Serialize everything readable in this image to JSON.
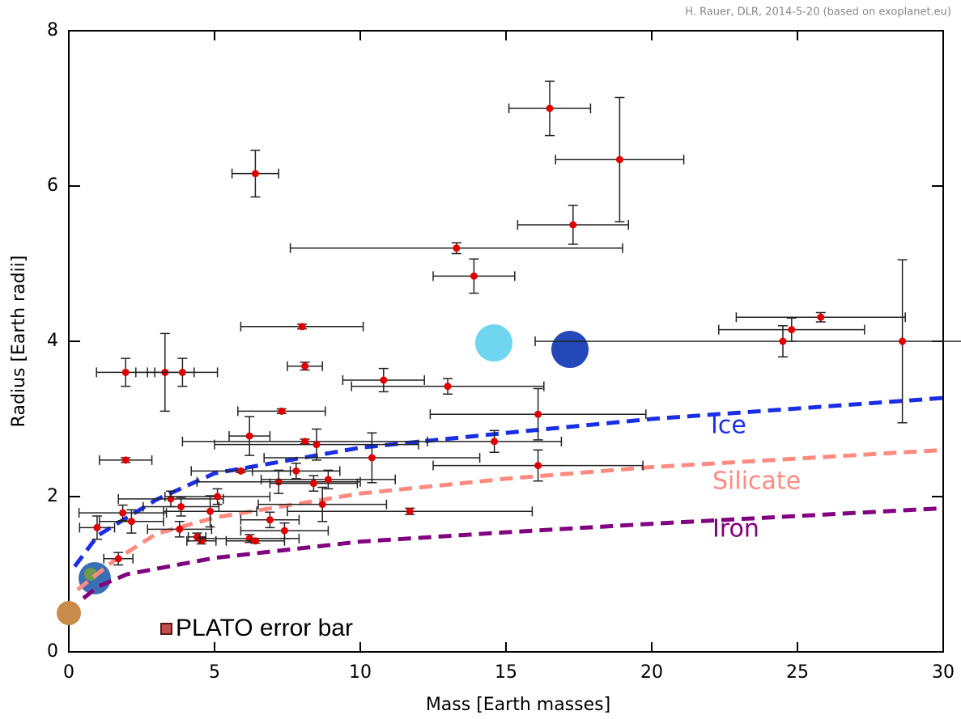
{
  "chart_data": {
    "type": "scatter",
    "credit": "H. Rauer, DLR, 2014-5-20 (based on exoplanet.eu)",
    "x_label": "Mass [Earth masses]",
    "y_label": "Radius [Earth radii]",
    "annotation": "PLATO error bar",
    "xlim": [
      0,
      30
    ],
    "xticks": [
      0,
      5,
      10,
      15,
      20,
      25,
      30
    ],
    "ylim": [
      0,
      8
    ],
    "yticks": [
      0,
      2,
      4,
      6,
      8
    ],
    "series": [
      {
        "color": "#e00000",
        "x": [
          16.5,
          18.9,
          6.4,
          17.3,
          13.3,
          13.9,
          8.0,
          25.8,
          24.8,
          24.5,
          28.6,
          1.95,
          3.3,
          3.9,
          8.1,
          10.8,
          13.0,
          7.3,
          16.1,
          6.2,
          8.1,
          8.5,
          14.6,
          1.95,
          10.4,
          16.1,
          5.9,
          7.8,
          7.2,
          8.4,
          8.9,
          3.5,
          5.1,
          3.85,
          1.85,
          4.85,
          8.7,
          11.7,
          0.97,
          2.15,
          3.8,
          6.9,
          4.4,
          4.55,
          6.2,
          6.4,
          7.4,
          1.7
        ],
        "values": [
          7.0,
          6.34,
          6.16,
          5.5,
          5.2,
          4.84,
          4.19,
          4.31,
          4.15,
          4.0,
          4.0,
          3.6,
          3.6,
          3.6,
          3.68,
          3.5,
          3.42,
          3.1,
          3.06,
          2.78,
          2.71,
          2.67,
          2.71,
          2.47,
          2.5,
          2.4,
          2.33,
          2.33,
          2.19,
          2.17,
          2.22,
          1.97,
          2.0,
          1.87,
          1.79,
          1.81,
          1.9,
          1.81,
          1.6,
          1.68,
          1.58,
          1.7,
          1.48,
          1.43,
          1.46,
          1.43,
          1.56,
          1.2
        ],
        "xerr": [
          1.4,
          2.2,
          0.8,
          1.9,
          5.7,
          1.4,
          2.1,
          2.9,
          2.5,
          8.5,
          0,
          1.0,
          1.0,
          1.2,
          0.6,
          1.4,
          3.3,
          1.5,
          3.7,
          0.7,
          4.2,
          3.5,
          2.3,
          0.9,
          3.7,
          3.6,
          1.7,
          1.5,
          2.8,
          1.5,
          2.3,
          1.8,
          1.8,
          1.3,
          1.5,
          1.6,
          2.2,
          4.2,
          0.6,
          1.1,
          1.1,
          1.0,
          0.3,
          0.5,
          1.7,
          1.0,
          1.5,
          0.5
        ],
        "yerr": [
          0.35,
          0.8,
          0.3,
          0.25,
          0.07,
          0.22,
          0.03,
          0.06,
          0.15,
          0.2,
          1.05,
          0.18,
          0.5,
          0.18,
          0.05,
          0.15,
          0.1,
          0.03,
          0.33,
          0.25,
          0.03,
          0.2,
          0.14,
          0.03,
          0.32,
          0.2,
          0.02,
          0.1,
          0.15,
          0.1,
          0.12,
          0.1,
          0.1,
          0.12,
          0.1,
          0.2,
          0.22,
          0.04,
          0.15,
          0.15,
          0.1,
          0.1,
          0.05,
          0.04,
          0.05,
          0.03,
          0.1,
          0.08
        ]
      }
    ],
    "curves": [
      {
        "name": "Ice",
        "color": "#1a2ee6",
        "x": [
          0.2,
          1,
          3,
          5,
          10,
          15,
          20,
          30
        ],
        "values": [
          1.1,
          1.5,
          1.96,
          2.3,
          2.63,
          2.82,
          3.0,
          3.27
        ]
      },
      {
        "name": "Silicate",
        "color": "#ff8a80",
        "x": [
          0.3,
          1.5,
          3,
          5,
          10,
          15,
          20,
          30
        ],
        "values": [
          0.8,
          1.16,
          1.52,
          1.73,
          2.04,
          2.23,
          2.38,
          2.6
        ]
      },
      {
        "name": "Iron",
        "color": "#800080",
        "x": [
          0.5,
          1,
          2,
          5,
          10,
          15,
          20,
          30
        ],
        "values": [
          0.69,
          0.84,
          1.0,
          1.21,
          1.42,
          1.54,
          1.65,
          1.85
        ]
      }
    ]
  }
}
